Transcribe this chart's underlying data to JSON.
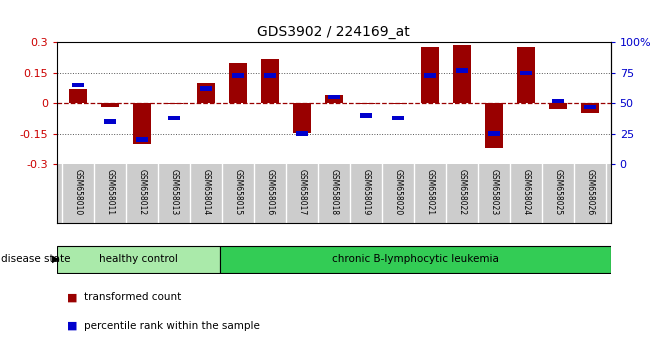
{
  "title": "GDS3902 / 224169_at",
  "samples": [
    "GSM658010",
    "GSM658011",
    "GSM658012",
    "GSM658013",
    "GSM658014",
    "GSM658015",
    "GSM658016",
    "GSM658017",
    "GSM658018",
    "GSM658019",
    "GSM658020",
    "GSM658021",
    "GSM658022",
    "GSM658023",
    "GSM658024",
    "GSM658025",
    "GSM658026"
  ],
  "bar_values": [
    0.07,
    -0.02,
    -0.2,
    -0.005,
    0.1,
    0.2,
    0.22,
    -0.145,
    0.04,
    -0.005,
    -0.005,
    0.28,
    0.29,
    -0.22,
    0.28,
    -0.03,
    -0.05
  ],
  "blue_values": [
    65,
    35,
    20,
    38,
    62,
    73,
    73,
    25,
    55,
    40,
    38,
    73,
    77,
    25,
    75,
    52,
    47
  ],
  "healthy_count": 5,
  "ylim": [
    -0.3,
    0.3
  ],
  "yticks_left": [
    -0.3,
    -0.15,
    0.0,
    0.15,
    0.3
  ],
  "yticks_right": [
    0,
    25,
    50,
    75,
    100
  ],
  "bar_color": "#990000",
  "blue_color": "#0000cc",
  "healthy_color": "#aaeaaa",
  "leukemia_color": "#33cc55",
  "label_color_red": "#cc0000",
  "label_color_blue": "#0000cc",
  "bg_color": "#ffffff",
  "xlabel_bg": "#cccccc",
  "disease_state_label": "disease state",
  "healthy_label": "healthy control",
  "leukemia_label": "chronic B-lymphocytic leukemia",
  "legend_red": "transformed count",
  "legend_blue": "percentile rank within the sample"
}
